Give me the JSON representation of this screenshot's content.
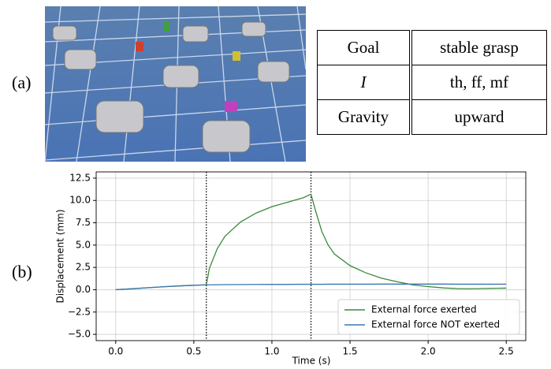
{
  "panel_labels": {
    "a": "(a)",
    "b": "(b)"
  },
  "table": {
    "rows": [
      [
        "Goal",
        "stable grasp"
      ],
      [
        "I",
        "th, ff, mf"
      ],
      [
        "Gravity",
        "upward"
      ]
    ]
  },
  "chart_data": {
    "type": "line",
    "xlabel": "Time (s)",
    "ylabel": "Displacement (mm)",
    "x": [
      0,
      0.1,
      0.2,
      0.3,
      0.4,
      0.5,
      0.58,
      0.6,
      0.65,
      0.7,
      0.8,
      0.9,
      1.0,
      1.1,
      1.2,
      1.25,
      1.28,
      1.32,
      1.36,
      1.4,
      1.5,
      1.6,
      1.7,
      1.8,
      1.9,
      2.0,
      2.1,
      2.2,
      2.3,
      2.4,
      2.5
    ],
    "series": [
      {
        "name": "External force exerted",
        "color": "#3a8a3a",
        "values": [
          0,
          0.1,
          0.22,
          0.33,
          0.42,
          0.5,
          0.55,
          2.4,
          4.6,
          6.0,
          7.6,
          8.6,
          9.3,
          9.8,
          10.3,
          10.7,
          8.8,
          6.5,
          5.0,
          4.0,
          2.7,
          1.9,
          1.3,
          0.9,
          0.55,
          0.35,
          0.2,
          0.12,
          0.12,
          0.15,
          0.18
        ]
      },
      {
        "name": "External force NOT exerted",
        "color": "#3a76b0",
        "values": [
          0,
          0.1,
          0.22,
          0.33,
          0.42,
          0.5,
          0.55,
          0.55,
          0.56,
          0.57,
          0.58,
          0.59,
          0.6,
          0.6,
          0.61,
          0.61,
          0.61,
          0.61,
          0.62,
          0.62,
          0.62,
          0.62,
          0.63,
          0.63,
          0.63,
          0.63,
          0.63,
          0.62,
          0.62,
          0.62,
          0.62
        ]
      }
    ],
    "vlines": [
      0.58,
      1.25
    ],
    "xlim": [
      -0.125,
      2.625
    ],
    "ylim": [
      -5.7,
      13.2
    ],
    "xticks": [
      {
        "value": 0,
        "label": "0.0"
      },
      0.5,
      {
        "value": 1,
        "label": "1.0"
      },
      1.5,
      {
        "value": 2,
        "label": "2.0"
      },
      2.5
    ],
    "yticks": [
      {
        "value": -5,
        "label": "−5.0"
      },
      {
        "value": -2.5,
        "label": "−2.5"
      },
      {
        "value": 0,
        "label": "0.0"
      },
      2.5,
      {
        "value": 5,
        "label": "5.0"
      },
      7.5,
      {
        "value": 10,
        "label": "10.0"
      },
      12.5
    ],
    "grid": true,
    "legend": "lower right"
  }
}
